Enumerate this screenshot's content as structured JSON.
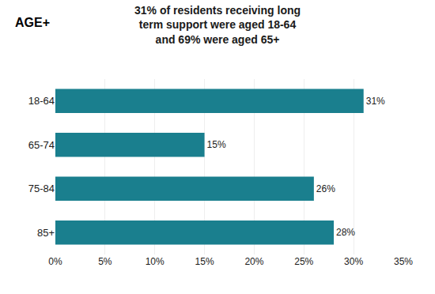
{
  "chart_data": {
    "type": "bar",
    "orientation": "horizontal",
    "title": "31% of residents receiving long\nterm support were aged 18-64\nand 69% were aged 65+",
    "annotations": [
      "AGE+"
    ],
    "categories": [
      "18-64",
      "65-74",
      "75-84",
      "85+"
    ],
    "values": [
      31,
      15,
      26,
      28
    ],
    "value_labels": [
      "31%",
      "15%",
      "26%",
      "28%"
    ],
    "data_labels": true,
    "color": "#1a7f8e",
    "xlim": [
      0,
      35
    ],
    "xticks": [
      {
        "value": 0,
        "label": "0%"
      },
      {
        "value": 5,
        "label": "5%"
      },
      {
        "value": 10,
        "label": "10%"
      },
      {
        "value": 15,
        "label": "15%"
      },
      {
        "value": 20,
        "label": "20%"
      },
      {
        "value": 25,
        "label": "25%"
      },
      {
        "value": 30,
        "label": "30%"
      },
      {
        "value": 35,
        "label": "35%"
      }
    ],
    "grid": true
  }
}
